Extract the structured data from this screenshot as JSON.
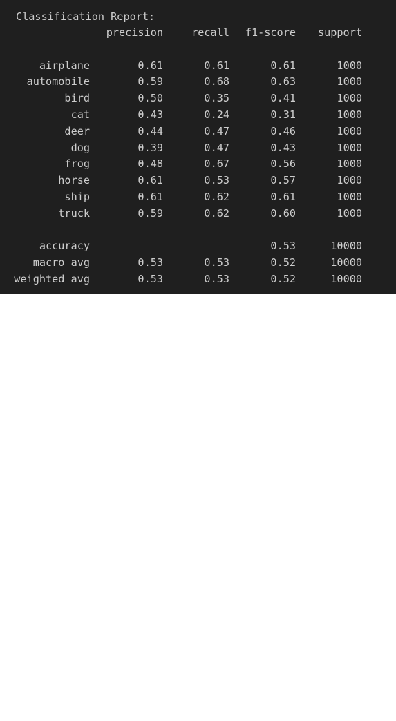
{
  "report": {
    "title": "Classification Report:",
    "headers": {
      "precision": "precision",
      "recall": "recall",
      "f1": "f1-score",
      "support": "support"
    },
    "classes": [
      {
        "label": "airplane",
        "precision": "0.61",
        "recall": "0.61",
        "f1": "0.61",
        "support": "1000"
      },
      {
        "label": "automobile",
        "precision": "0.59",
        "recall": "0.68",
        "f1": "0.63",
        "support": "1000"
      },
      {
        "label": "bird",
        "precision": "0.50",
        "recall": "0.35",
        "f1": "0.41",
        "support": "1000"
      },
      {
        "label": "cat",
        "precision": "0.43",
        "recall": "0.24",
        "f1": "0.31",
        "support": "1000"
      },
      {
        "label": "deer",
        "precision": "0.44",
        "recall": "0.47",
        "f1": "0.46",
        "support": "1000"
      },
      {
        "label": "dog",
        "precision": "0.39",
        "recall": "0.47",
        "f1": "0.43",
        "support": "1000"
      },
      {
        "label": "frog",
        "precision": "0.48",
        "recall": "0.67",
        "f1": "0.56",
        "support": "1000"
      },
      {
        "label": "horse",
        "precision": "0.61",
        "recall": "0.53",
        "f1": "0.57",
        "support": "1000"
      },
      {
        "label": "ship",
        "precision": "0.61",
        "recall": "0.62",
        "f1": "0.61",
        "support": "1000"
      },
      {
        "label": "truck",
        "precision": "0.59",
        "recall": "0.62",
        "f1": "0.60",
        "support": "1000"
      }
    ],
    "accuracy": {
      "label": "accuracy",
      "f1": "0.53",
      "support": "10000"
    },
    "macro_avg": {
      "label": "macro avg",
      "precision": "0.53",
      "recall": "0.53",
      "f1": "0.52",
      "support": "10000"
    },
    "weighted_avg": {
      "label": "weighted avg",
      "precision": "0.53",
      "recall": "0.53",
      "f1": "0.52",
      "support": "10000"
    }
  },
  "colors": {
    "panel_background": "#1f1f1f",
    "text": "#cccccc",
    "page_background": "#ffffff"
  }
}
